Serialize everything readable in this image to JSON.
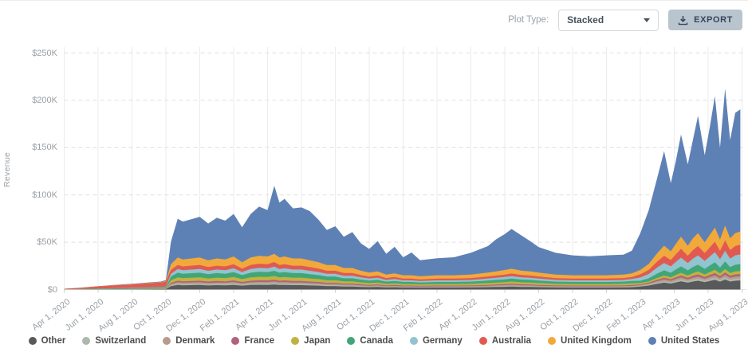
{
  "toolbar": {
    "plot_type_label": "Plot Type:",
    "plot_type_value": "Stacked",
    "export_label": "EXPORT"
  },
  "colors": {
    "export_button_bg": "#b9c5ce",
    "export_button_text": "#36435a",
    "axis_text": "#9aa0a6",
    "legend_text": "#4d4d4d",
    "gridline": "#ececec",
    "dashed_gridline": "#e0e0e0"
  },
  "chart_data": {
    "type": "area",
    "stacked": true,
    "title": "",
    "xlabel": "",
    "ylabel": "Revenue",
    "units": "USD thousands",
    "x_units": "months since Apr 1, 2020",
    "ylim": [
      0,
      250
    ],
    "xlim": [
      0,
      40.2
    ],
    "grid": true,
    "legend_position": "bottom",
    "y_tick_values": [
      0,
      50,
      100,
      150,
      200,
      250
    ],
    "y_tick_labels": [
      "$0",
      "$50K",
      "$100K",
      "$150K",
      "$200K",
      "$250K"
    ],
    "x_tick_positions": [
      0,
      2,
      4,
      6,
      8,
      10,
      12,
      14,
      16,
      18,
      20,
      22,
      24,
      26,
      28,
      30,
      32,
      34,
      36,
      38,
      40
    ],
    "x_tick_labels": [
      "Apr 1, 2020",
      "Jun 1, 2020",
      "Aug 1, 2020",
      "Oct 1, 2020",
      "Dec 1, 2020",
      "Feb 1, 2021",
      "Apr 1, 2021",
      "Jun 1, 2021",
      "Aug 1, 2021",
      "Oct 1, 2021",
      "Dec 1, 2021",
      "Feb 1, 2022",
      "Apr 1, 2022",
      "Jun 1, 2022",
      "Aug 1, 2022",
      "Oct 1, 2022",
      "Dec 1, 2022",
      "Feb 1, 2023",
      "Apr 1, 2023",
      "Jun 1, 2023",
      "Aug 1, 2023"
    ],
    "x": [
      0,
      1,
      2,
      3,
      4,
      5,
      5.7,
      6,
      6.3,
      6.7,
      7,
      8,
      8.5,
      9,
      9.5,
      10,
      10.5,
      11,
      11.5,
      12,
      12.4,
      12.7,
      13,
      13.5,
      14,
      14.5,
      15,
      15.5,
      16,
      16.5,
      17,
      17.5,
      18,
      18.5,
      19,
      19.5,
      20,
      20.5,
      21,
      22,
      23,
      24,
      25,
      25.5,
      26,
      26.4,
      27,
      27.5,
      28,
      29,
      30,
      31,
      32,
      33,
      33.5,
      34,
      34.5,
      35,
      35.4,
      35.8,
      36.1,
      36.4,
      36.8,
      37.1,
      37.4,
      37.8,
      38.1,
      38.4,
      38.7,
      39,
      39.3,
      39.6,
      39.9
    ],
    "series": [
      {
        "name": "Other",
        "color": "#58595b",
        "values": [
          0.04,
          0.1,
          0.17,
          0.24,
          0.28,
          0.35,
          0.4,
          0.46,
          3.6,
          4.8,
          4.5,
          4.8,
          4.3,
          4.6,
          4.5,
          4.9,
          4.1,
          4.8,
          5.0,
          4.9,
          5.3,
          4.8,
          4.9,
          4.6,
          4.6,
          4.3,
          4.1,
          3.6,
          3.6,
          3.2,
          3.2,
          2.8,
          2.5,
          2.7,
          2.2,
          2.4,
          2.1,
          2.1,
          2.0,
          2.1,
          2.1,
          2.2,
          2.5,
          2.7,
          2.9,
          3.1,
          2.8,
          2.7,
          2.5,
          2.2,
          2.1,
          2.1,
          2.1,
          2.2,
          2.4,
          3.2,
          4.2,
          6.0,
          7.2,
          6.3,
          7.5,
          8.7,
          7.2,
          8.4,
          9.3,
          7.8,
          9.0,
          10.2,
          8.3,
          10.5,
          8.4,
          9.3,
          9.6
        ]
      },
      {
        "name": "Switzerland",
        "color": "#abb8ac",
        "values": [
          0.01,
          0.03,
          0.05,
          0.07,
          0.08,
          0.11,
          0.12,
          0.14,
          1.0,
          1.4,
          1.3,
          1.4,
          1.2,
          1.3,
          1.3,
          1.4,
          1.2,
          1.4,
          1.4,
          1.4,
          1.5,
          1.4,
          1.4,
          1.3,
          1.3,
          1.2,
          1.2,
          1.0,
          1.0,
          0.9,
          0.9,
          0.8,
          0.7,
          0.8,
          0.6,
          0.7,
          0.6,
          0.6,
          0.6,
          0.6,
          0.6,
          0.6,
          0.7,
          0.8,
          0.8,
          0.9,
          0.8,
          0.8,
          0.7,
          0.6,
          0.6,
          0.6,
          0.6,
          0.6,
          0.7,
          0.7,
          1.0,
          1.4,
          1.7,
          1.5,
          1.8,
          2.0,
          1.7,
          2.0,
          2.2,
          1.8,
          2.1,
          2.4,
          1.9,
          2.5,
          2.0,
          2.2,
          2.2
        ]
      },
      {
        "name": "Denmark",
        "color": "#b89b8b",
        "values": [
          0.02,
          0.04,
          0.07,
          0.09,
          0.11,
          0.14,
          0.16,
          0.18,
          1.2,
          1.5,
          1.4,
          1.5,
          1.4,
          1.5,
          1.4,
          1.6,
          1.3,
          1.5,
          1.6,
          1.6,
          1.7,
          1.5,
          1.6,
          1.5,
          1.5,
          1.4,
          1.3,
          1.2,
          1.2,
          1.0,
          1.0,
          0.9,
          0.8,
          0.9,
          0.7,
          0.8,
          0.7,
          0.7,
          0.6,
          0.7,
          0.7,
          0.7,
          0.8,
          0.9,
          0.9,
          1.0,
          0.9,
          0.9,
          0.8,
          0.7,
          0.7,
          0.7,
          0.7,
          0.7,
          0.8,
          0.7,
          1.0,
          1.4,
          1.7,
          1.5,
          1.8,
          2.0,
          1.7,
          2.0,
          2.2,
          1.8,
          2.1,
          2.4,
          1.9,
          2.5,
          2.0,
          2.2,
          2.2
        ]
      },
      {
        "name": "France",
        "color": "#b2617f",
        "values": [
          0.02,
          0.04,
          0.07,
          0.09,
          0.11,
          0.14,
          0.16,
          0.18,
          1.3,
          1.6,
          1.5,
          1.6,
          1.5,
          1.6,
          1.5,
          1.7,
          1.4,
          1.6,
          1.7,
          1.7,
          1.8,
          1.6,
          1.7,
          1.6,
          1.6,
          1.5,
          1.4,
          1.3,
          1.3,
          1.1,
          1.1,
          1.0,
          0.9,
          1.0,
          0.8,
          0.9,
          0.8,
          0.8,
          0.7,
          0.8,
          0.8,
          0.8,
          0.9,
          1.0,
          1.0,
          1.1,
          1.0,
          1.0,
          0.9,
          0.8,
          0.8,
          0.8,
          0.8,
          0.8,
          0.9,
          0.8,
          1.1,
          1.5,
          1.8,
          1.6,
          1.9,
          2.1,
          1.8,
          2.1,
          2.3,
          1.9,
          2.2,
          2.5,
          2.0,
          2.6,
          2.1,
          2.3,
          2.3
        ]
      },
      {
        "name": "Japan",
        "color": "#c0b23f",
        "values": [
          0.03,
          0.08,
          0.13,
          0.19,
          0.22,
          0.28,
          0.32,
          0.37,
          2.7,
          3.6,
          3.4,
          3.6,
          3.3,
          3.5,
          3.4,
          3.7,
          3.0,
          3.6,
          3.8,
          3.7,
          4.0,
          3.6,
          3.7,
          3.5,
          3.5,
          3.3,
          3.0,
          2.7,
          2.7,
          2.4,
          2.4,
          2.1,
          1.9,
          2.0,
          1.7,
          1.8,
          1.6,
          1.6,
          1.5,
          1.6,
          1.6,
          1.7,
          1.9,
          2.0,
          2.2,
          2.3,
          2.1,
          2.0,
          1.9,
          1.7,
          1.6,
          1.6,
          1.6,
          1.7,
          1.8,
          1.5,
          1.4,
          2.0,
          2.4,
          2.1,
          2.5,
          2.9,
          2.4,
          2.8,
          3.1,
          2.6,
          3.0,
          3.4,
          2.8,
          3.5,
          2.8,
          3.1,
          3.2
        ]
      },
      {
        "name": "Canada",
        "color": "#41a677",
        "values": [
          0.1,
          0.25,
          0.43,
          0.61,
          0.73,
          0.91,
          1.0,
          1.2,
          3.8,
          4.9,
          4.6,
          4.9,
          4.5,
          4.8,
          4.6,
          5.1,
          4.2,
          4.9,
          5.2,
          5.1,
          5.5,
          4.9,
          5.1,
          4.8,
          4.8,
          4.5,
          4.2,
          3.8,
          3.8,
          3.3,
          3.3,
          2.9,
          2.6,
          2.8,
          2.3,
          2.5,
          2.2,
          2.2,
          2.0,
          2.2,
          2.2,
          2.3,
          2.6,
          2.8,
          3.0,
          3.2,
          2.9,
          2.8,
          2.6,
          2.3,
          2.2,
          2.2,
          2.2,
          2.3,
          2.5,
          2.4,
          3.2,
          4.6,
          5.5,
          4.8,
          5.8,
          6.7,
          5.5,
          6.4,
          7.1,
          6.0,
          6.9,
          7.8,
          6.3,
          8.1,
          6.4,
          7.1,
          7.4
        ]
      },
      {
        "name": "Germany",
        "color": "#90c4d0",
        "values": [
          0.04,
          0.1,
          0.18,
          0.26,
          0.31,
          0.39,
          0.43,
          0.51,
          3.0,
          3.9,
          3.7,
          3.9,
          3.6,
          3.8,
          3.7,
          4.0,
          3.3,
          3.9,
          4.1,
          4.0,
          4.4,
          3.9,
          4.0,
          3.8,
          3.8,
          3.6,
          3.3,
          3.0,
          3.0,
          2.6,
          2.6,
          2.3,
          2.1,
          2.2,
          1.8,
          2.0,
          1.7,
          1.7,
          1.6,
          1.7,
          1.7,
          1.8,
          2.1,
          2.2,
          2.4,
          2.5,
          2.3,
          2.2,
          2.1,
          1.8,
          1.7,
          1.7,
          1.7,
          1.8,
          2.0,
          3.4,
          4.5,
          6.4,
          7.7,
          6.7,
          8.0,
          9.3,
          7.7,
          9.0,
          9.9,
          8.3,
          9.6,
          10.9,
          8.8,
          11.2,
          9.0,
          9.9,
          10.2
        ]
      },
      {
        "name": "Australia",
        "color": "#e15a52",
        "values": [
          0.45,
          1.15,
          2.0,
          2.8,
          3.4,
          4.2,
          4.7,
          5.5,
          4.2,
          4.3,
          4.0,
          4.3,
          3.9,
          4.1,
          4.0,
          4.4,
          3.6,
          4.3,
          4.5,
          4.4,
          4.8,
          4.3,
          4.4,
          4.1,
          4.1,
          3.9,
          3.6,
          3.3,
          3.3,
          2.9,
          2.9,
          2.5,
          2.3,
          2.4,
          2.0,
          2.1,
          1.9,
          1.9,
          1.8,
          1.9,
          1.9,
          2.0,
          2.3,
          2.4,
          2.6,
          2.8,
          2.5,
          2.4,
          2.3,
          2.0,
          1.9,
          1.9,
          1.9,
          2.0,
          2.1,
          3.4,
          4.5,
          6.4,
          7.7,
          6.7,
          8.0,
          9.3,
          7.7,
          9.0,
          9.9,
          8.3,
          9.6,
          10.9,
          8.8,
          11.2,
          9.0,
          9.9,
          10.2
        ]
      },
      {
        "name": "United Kingdom",
        "color": "#f2a93b",
        "values": [
          0.05,
          0.13,
          0.23,
          0.33,
          0.39,
          0.49,
          0.55,
          0.64,
          6.0,
          7.8,
          7.4,
          7.8,
          7.1,
          7.6,
          7.4,
          8.1,
          6.7,
          7.8,
          8.3,
          8.1,
          8.7,
          7.8,
          8.1,
          7.6,
          7.6,
          7.1,
          6.7,
          6.0,
          6.0,
          5.3,
          5.3,
          4.6,
          4.1,
          4.4,
          3.7,
          3.9,
          3.5,
          3.5,
          3.2,
          3.5,
          3.5,
          3.7,
          4.1,
          4.4,
          4.8,
          5.1,
          4.6,
          4.4,
          4.1,
          3.7,
          3.5,
          3.5,
          3.5,
          3.7,
          3.9,
          4.6,
          6.2,
          8.8,
          10.6,
          9.2,
          11.0,
          12.8,
          10.6,
          12.3,
          13.6,
          11.4,
          13.2,
          15.0,
          12.1,
          15.4,
          12.3,
          13.6,
          14.1
        ]
      },
      {
        "name": "United States",
        "color": "#5e81b5",
        "values": [
          0.05,
          0.1,
          0.2,
          0.3,
          0.4,
          0.5,
          0.6,
          0.8,
          24,
          41,
          40,
          43,
          39,
          43,
          41,
          45,
          37,
          46,
          52,
          49,
          72,
          58,
          61,
          53,
          54,
          52,
          45,
          37,
          41,
          33,
          38,
          29,
          25,
          32,
          22,
          28,
          19,
          24,
          17,
          18,
          19,
          23,
          28,
          34,
          38,
          42,
          37,
          32,
          27,
          23,
          21,
          20,
          21,
          21,
          24,
          39,
          57,
          80,
          100,
          72,
          88,
          108,
          86,
          104,
          124,
          92,
          114,
          139,
          97,
          145,
          104,
          127,
          129
        ]
      }
    ]
  }
}
